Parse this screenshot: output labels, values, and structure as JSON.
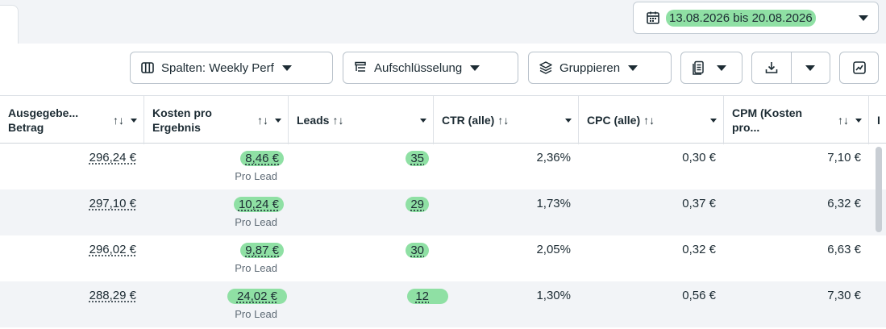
{
  "date_range": {
    "label": "13.08.2026 bis 20.08.2026"
  },
  "toolbar": {
    "columns_label": "Spalten: Weekly Perf",
    "breakdown_label": "Aufschlüsselung",
    "group_label": "Gruppieren"
  },
  "table": {
    "headers": [
      {
        "line1": "Ausgegebe...",
        "line2": "Betrag"
      },
      {
        "line1": "Kosten pro",
        "line2": "Ergebnis"
      },
      {
        "line1": "Leads",
        "line2": ""
      },
      {
        "line1": "CTR (alle)",
        "line2": ""
      },
      {
        "line1": "CPC (alle)",
        "line2": ""
      },
      {
        "line1": "CPM (Kosten",
        "line2": "pro..."
      },
      {
        "line1": "I",
        "line2": ""
      }
    ],
    "sort_glyph": "↑↓",
    "rows": [
      {
        "spent": "296,24 €",
        "cost": "8,46 €",
        "cost_sub": "Pro Lead",
        "leads": "35",
        "ctr": "2,36%",
        "cpc": "0,30 €",
        "cpm": "7,10 €"
      },
      {
        "spent": "297,10 €",
        "cost": "10,24 €",
        "cost_sub": "Pro Lead",
        "leads": "29",
        "ctr": "1,73%",
        "cpc": "0,37 €",
        "cpm": "6,32 €"
      },
      {
        "spent": "296,02 €",
        "cost": "9,87 €",
        "cost_sub": "Pro Lead",
        "leads": "30",
        "ctr": "2,05%",
        "cpc": "0,32 €",
        "cpm": "6,63 €"
      },
      {
        "spent": "288,29 €",
        "cost": "24,02 €",
        "cost_sub": "Pro Lead",
        "leads": "12",
        "ctr": "1,30%",
        "cpc": "0,56 €",
        "cpm": "7,30 €"
      }
    ]
  },
  "colors": {
    "highlight": "#8fe0a4",
    "border": "#b9c2cb",
    "text": "#1c2b33",
    "alt_row": "#f2f4f7"
  }
}
